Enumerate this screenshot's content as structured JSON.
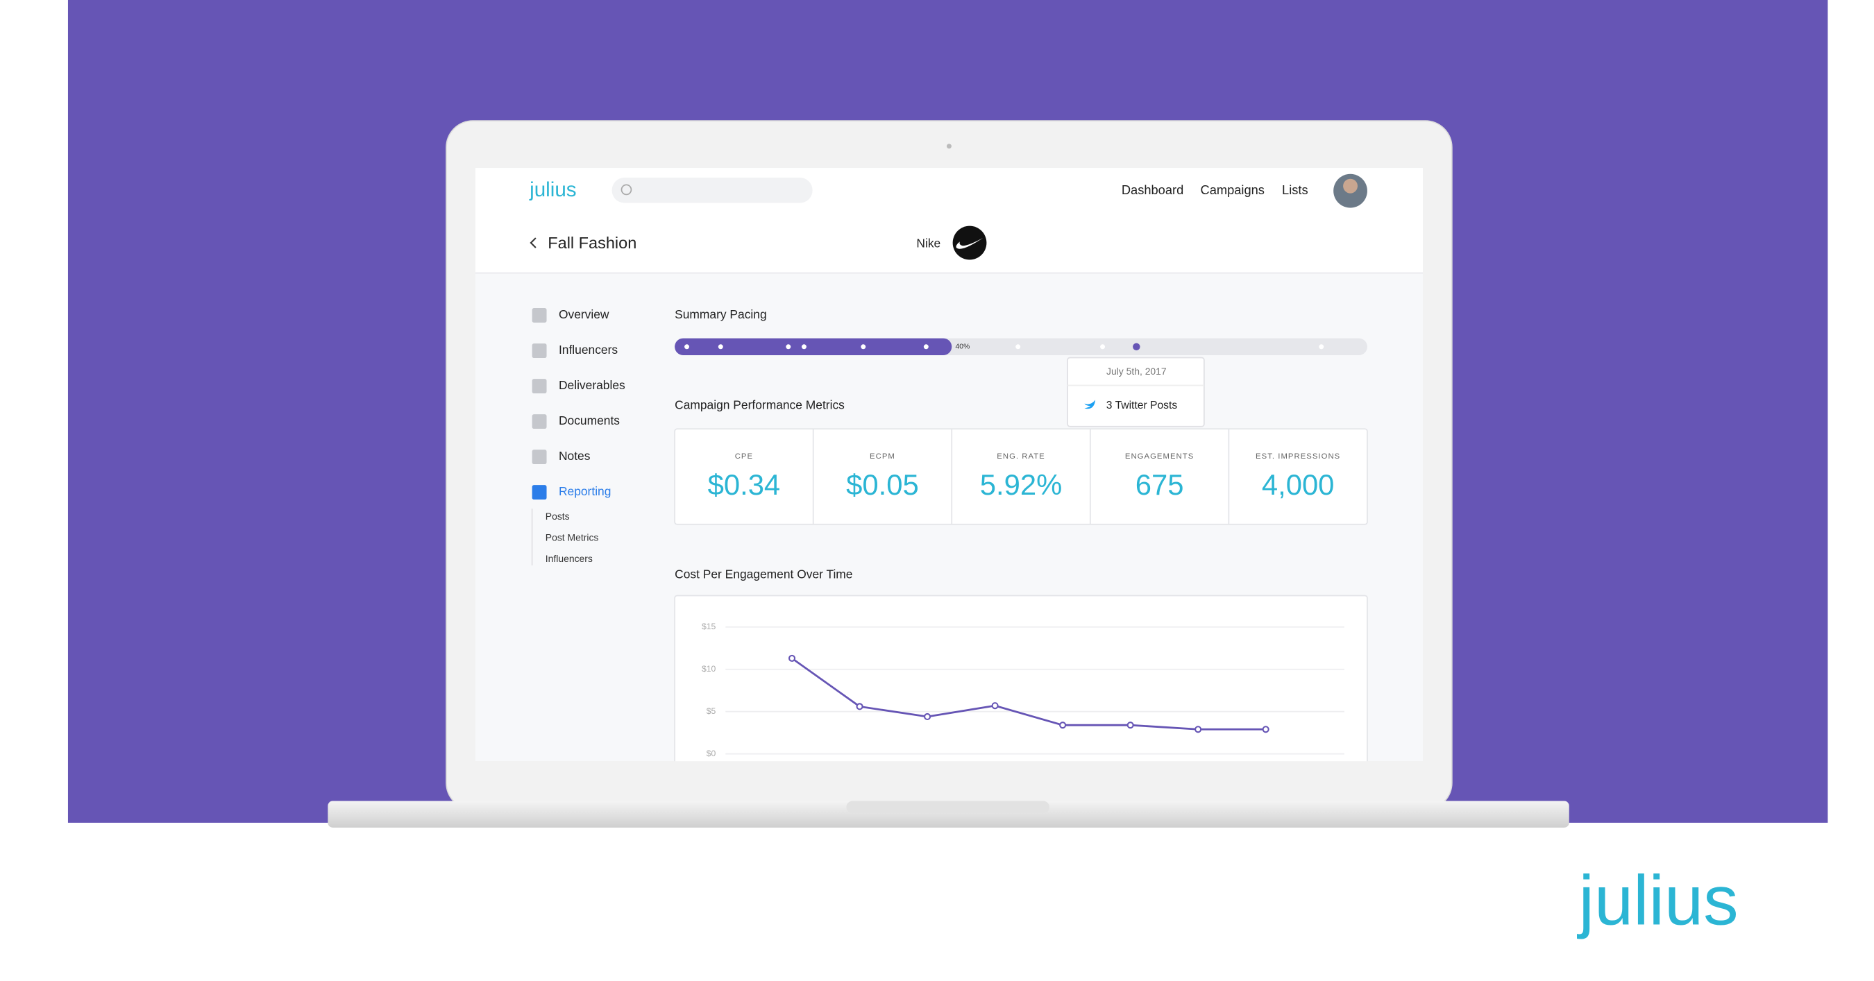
{
  "header": {
    "logo": "julius",
    "nav": [
      "Dashboard",
      "Campaigns",
      "Lists"
    ]
  },
  "page": {
    "title": "Fall Fashion",
    "brand": "Nike"
  },
  "sidebar": {
    "items": [
      "Overview",
      "Influencers",
      "Deliverables",
      "Documents",
      "Notes",
      "Reporting"
    ],
    "subitems": [
      "Posts",
      "Post Metrics",
      "Influencers"
    ]
  },
  "pacing": {
    "title": "Summary Pacing",
    "progress": {
      "value": 40,
      "label": "40%"
    },
    "tooltip": {
      "date": "July 5th, 2017",
      "text": "3 Twitter Posts"
    }
  },
  "metrics": {
    "title": "Campaign Performance Metrics",
    "cards": [
      {
        "label": "CPE",
        "value": "$0.34"
      },
      {
        "label": "ECPM",
        "value": "$0.05"
      },
      {
        "label": "ENG. RATE",
        "value": "5.92%"
      },
      {
        "label": "ENGAGEMENTS",
        "value": "675"
      },
      {
        "label": "EST. IMPRESSIONS",
        "value": "4,000"
      }
    ]
  },
  "chart_data": {
    "type": "line",
    "title": "Cost Per Engagement Over Time",
    "categories": [
      null,
      null,
      null,
      null,
      null,
      null,
      null,
      null
    ],
    "values": [
      11.3,
      5.6,
      4.4,
      5.7,
      3.4,
      3.4,
      2.9,
      2.9
    ],
    "color": "#6655b5",
    "ylim": [
      0,
      15
    ],
    "yticks": [
      {
        "value": 0,
        "label": "$0"
      },
      {
        "value": 5,
        "label": "$5"
      },
      {
        "value": 10,
        "label": "$10"
      },
      {
        "value": 15,
        "label": "$15"
      }
    ],
    "grid": true
  },
  "footer": {
    "logo": "julius"
  }
}
